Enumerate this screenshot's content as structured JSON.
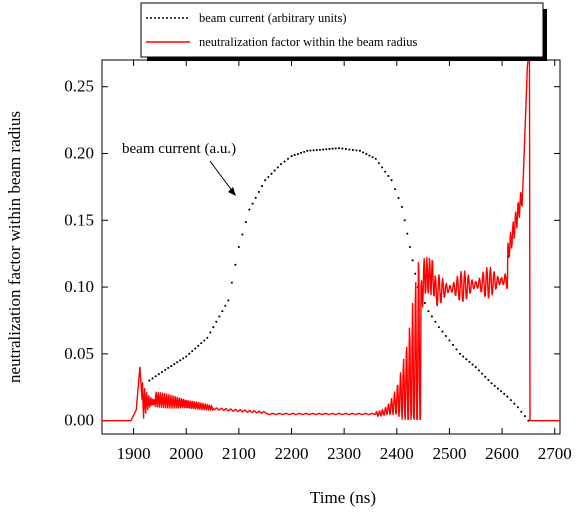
{
  "chart_data": {
    "type": "line",
    "xlabel": "Time (ns)",
    "ylabel": "neutralization factor within beam radius",
    "xlim": [
      1840,
      2710
    ],
    "ylim": [
      -0.01,
      0.27
    ],
    "xticks": [
      1900,
      2000,
      2100,
      2200,
      2300,
      2400,
      2500,
      2600,
      2700
    ],
    "yticks": [
      "0.00",
      "0.05",
      "0.10",
      "0.15",
      "0.20",
      "0.25"
    ],
    "legend_position": "top",
    "legend": [
      {
        "label": "beam current (arbitrary units)",
        "style": "dotted",
        "color": "#000000"
      },
      {
        "label": "neutralization factor within the beam radius",
        "style": "solid",
        "color": "#ff0000"
      }
    ],
    "annotation": {
      "text": "beam current (a.u.)",
      "points_to": [
        2108,
        0.15
      ]
    },
    "series": [
      {
        "name": "beam current (arbitrary units)",
        "style": "dotted",
        "color": "#000000",
        "x": [
          1930,
          1960,
          2000,
          2040,
          2080,
          2100,
          2120,
          2150,
          2180,
          2200,
          2230,
          2260,
          2290,
          2310,
          2330,
          2360,
          2390,
          2410,
          2420,
          2430,
          2440,
          2460,
          2480,
          2500,
          2520,
          2550,
          2580,
          2610,
          2630,
          2650
        ],
        "y": [
          0.03,
          0.038,
          0.048,
          0.062,
          0.09,
          0.13,
          0.158,
          0.18,
          0.192,
          0.198,
          0.202,
          0.203,
          0.204,
          0.203,
          0.202,
          0.196,
          0.18,
          0.16,
          0.14,
          0.12,
          0.1,
          0.082,
          0.07,
          0.06,
          0.05,
          0.04,
          0.028,
          0.018,
          0.01,
          0.0
        ]
      },
      {
        "name": "neutralization factor within the beam radius",
        "style": "solid",
        "color": "#ff0000"
      }
    ]
  }
}
